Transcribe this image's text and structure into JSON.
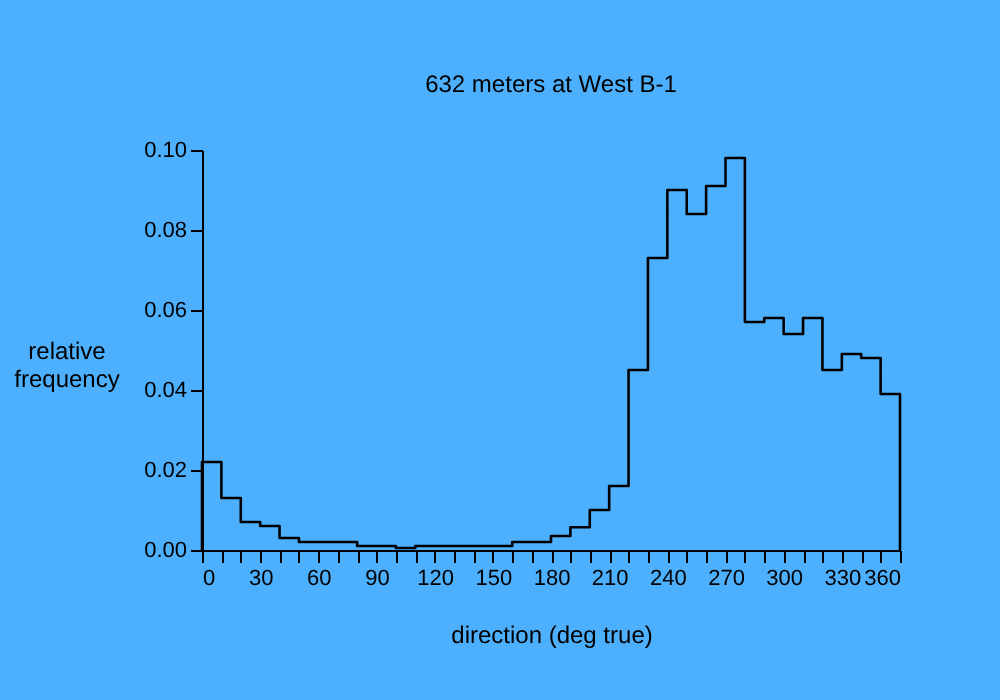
{
  "chart_data": {
    "type": "histogram",
    "title": "632 meters at West B-1",
    "xlabel": "direction (deg true)",
    "ylabel": "relative frequency",
    "bins": [
      0,
      10,
      20,
      30,
      40,
      50,
      60,
      70,
      80,
      90,
      100,
      110,
      120,
      130,
      140,
      150,
      160,
      170,
      180,
      190,
      200,
      210,
      220,
      230,
      240,
      250,
      260,
      270,
      280,
      290,
      300,
      310,
      320,
      330,
      340,
      350,
      360
    ],
    "values": [
      0.022,
      0.013,
      0.007,
      0.006,
      0.003,
      0.002,
      0.002,
      0.002,
      0.001,
      0.001,
      0.0005,
      0.001,
      0.001,
      0.001,
      0.001,
      0.001,
      0.002,
      0.002,
      0.0035,
      0.0057,
      0.01,
      0.016,
      0.045,
      0.073,
      0.09,
      0.084,
      0.091,
      0.098,
      0.057,
      0.058,
      0.054,
      0.058,
      0.045,
      0.049,
      0.048,
      0.039
    ],
    "color": "#000000",
    "xlim": [
      0,
      360
    ],
    "xticks": [
      0,
      {
        "value": 10,
        "label": null
      },
      {
        "value": 20,
        "label": null
      },
      30,
      {
        "value": 40,
        "label": null
      },
      {
        "value": 50,
        "label": null
      },
      60,
      {
        "value": 70,
        "label": null
      },
      {
        "value": 80,
        "label": null
      },
      90,
      {
        "value": 100,
        "label": null
      },
      {
        "value": 110,
        "label": null
      },
      120,
      {
        "value": 130,
        "label": null
      },
      {
        "value": 140,
        "label": null
      },
      150,
      {
        "value": 160,
        "label": null
      },
      {
        "value": 170,
        "label": null
      },
      180,
      {
        "value": 190,
        "label": null
      },
      {
        "value": 200,
        "label": null
      },
      210,
      {
        "value": 220,
        "label": null
      },
      {
        "value": 230,
        "label": null
      },
      240,
      {
        "value": 250,
        "label": null
      },
      {
        "value": 260,
        "label": null
      },
      270,
      {
        "value": 280,
        "label": null
      },
      {
        "value": 290,
        "label": null
      },
      300,
      {
        "value": 310,
        "label": null
      },
      {
        "value": 320,
        "label": null
      },
      330,
      {
        "value": 340,
        "label": null
      },
      {
        "value": 350,
        "label": null
      },
      360
    ],
    "ylim": [
      0,
      0.1
    ],
    "yticks": [
      {
        "value": 0,
        "label": "0.00"
      },
      {
        "value": 0.02,
        "label": "0.02"
      },
      {
        "value": 0.04,
        "label": "0.04"
      },
      {
        "value": 0.06,
        "label": "0.06"
      },
      {
        "value": 0.08,
        "label": "0.08"
      },
      {
        "value": 0.1,
        "label": "0.10"
      }
    ],
    "grid": false
  }
}
